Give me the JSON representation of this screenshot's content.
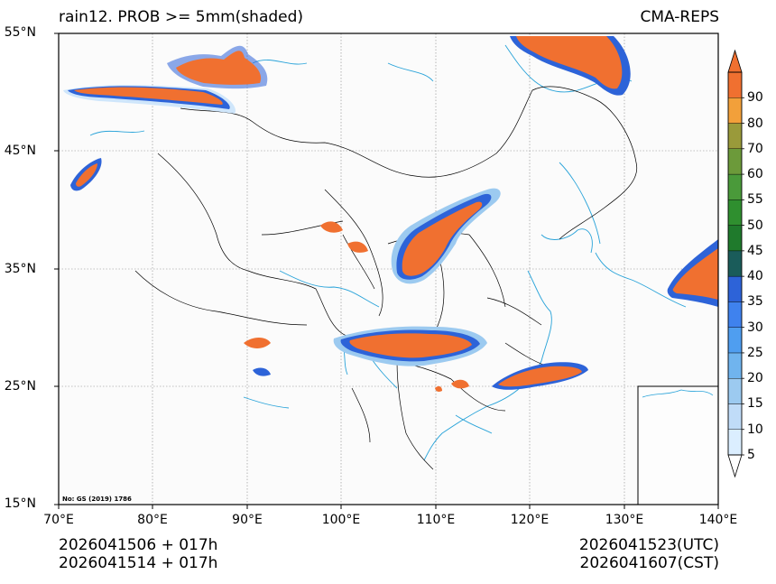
{
  "title_left": "rain12. PROB >= 5mm(shaded)",
  "title_right": "CMA-REPS",
  "lat_labels": [
    "55°N",
    "45°N",
    "35°N",
    "25°N",
    "15°N"
  ],
  "lon_labels": [
    "70°E",
    "80°E",
    "90°E",
    "100°E",
    "110°E",
    "120°E",
    "130°E",
    "140°E"
  ],
  "map_note": "No: GS (2019) 1786",
  "footer": {
    "left_line1": "2026041506  +  017h",
    "left_line2": "2026041514  +  017h",
    "right_line1": "2026041523(UTC)",
    "right_line2": "2026041607(CST)"
  },
  "colorbar": {
    "levels": [
      "5",
      "10",
      "15",
      "20",
      "25",
      "30",
      "35",
      "40",
      "45",
      "50",
      "55",
      "60",
      "70",
      "80",
      "90"
    ],
    "colors": [
      "#dbeeff",
      "#c0dcf8",
      "#9ccaf0",
      "#70b4ee",
      "#4f9ef0",
      "#3f82ee",
      "#2d63d8",
      "#1a5c5a",
      "#1f7a2c",
      "#2f8f2f",
      "#4a9a3a",
      "#6c9a3a",
      "#9a9a3a",
      "#f2a03a",
      "#f07030"
    ],
    "top_color": "#f07030"
  },
  "colors": {
    "coast": "#29a3d9",
    "border": "#000000",
    "grid": "#888888",
    "rain_core": "#f07030",
    "rain_edge": "#2d63d8"
  }
}
